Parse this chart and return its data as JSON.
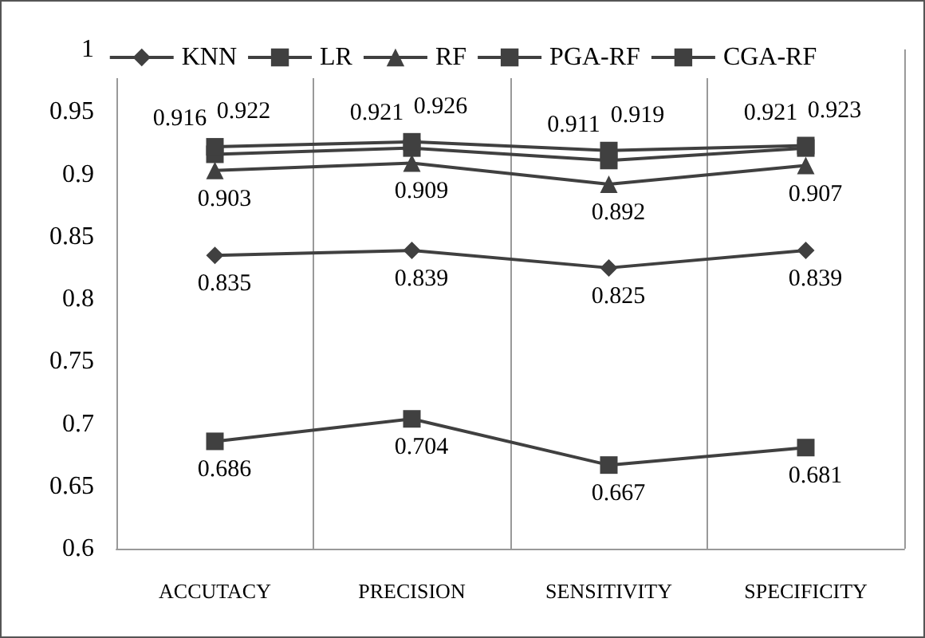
{
  "chart_data": {
    "type": "line",
    "categories": [
      "ACCUTACY",
      "PRECISION",
      "SENSITIVITY",
      "SPECIFICITY"
    ],
    "series": [
      {
        "name": "KNN",
        "color": "#404040",
        "marker": "diamond",
        "values": [
          0.835,
          0.839,
          0.825,
          0.839
        ]
      },
      {
        "name": "LR",
        "color": "#404040",
        "marker": "square",
        "values": [
          0.686,
          0.704,
          0.667,
          0.681
        ]
      },
      {
        "name": "RF",
        "color": "#404040",
        "marker": "triangle",
        "values": [
          0.903,
          0.909,
          0.892,
          0.907
        ]
      },
      {
        "name": "PGA-RF",
        "color": "#404040",
        "marker": "square",
        "values": [
          0.916,
          0.921,
          0.911,
          0.921
        ]
      },
      {
        "name": "CGA-RF",
        "color": "#404040",
        "marker": "square",
        "values": [
          0.922,
          0.926,
          0.919,
          0.923
        ]
      }
    ],
    "ylim": [
      0.6,
      1
    ],
    "yticks": [
      0.6,
      0.65,
      0.7,
      0.75,
      0.8,
      0.85,
      0.9,
      0.95,
      1
    ],
    "grid": "x",
    "legend": "top",
    "data_labels": true
  }
}
